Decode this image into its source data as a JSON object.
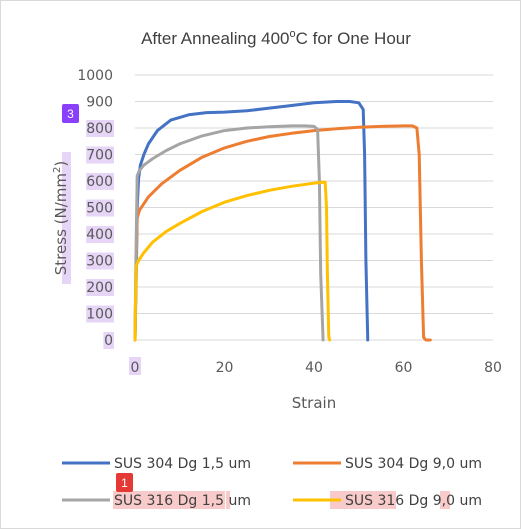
{
  "chart_data": {
    "type": "line",
    "title": "After Annealing 400",
    "title_sup": "o",
    "title_end": "C for One Hour",
    "xlabel": "Strain",
    "ylabel_main": "Stress (N/mm",
    "ylabel_sup": "2",
    "ylabel_end": ")",
    "xlim": [
      0,
      80
    ],
    "ylim": [
      0,
      1000
    ],
    "xticks": [
      "0",
      "20",
      "40",
      "60",
      "80"
    ],
    "yticks": [
      "0",
      "100",
      "200",
      "300",
      "400",
      "500",
      "600",
      "700",
      "800",
      "900",
      "1000"
    ],
    "grid": true,
    "legend_position": "bottom",
    "series": [
      {
        "name": "SUS 304 Dg 1,5 um",
        "color": "#4472c4",
        "x": [
          0,
          0.3,
          0.5,
          0.8,
          1.2,
          2,
          3,
          5,
          8,
          12,
          16,
          20,
          25,
          30,
          35,
          40,
          45,
          48,
          50,
          51,
          51.3,
          51.6,
          52,
          52
        ],
        "y": [
          0,
          250,
          500,
          610,
          660,
          700,
          740,
          790,
          830,
          850,
          858,
          860,
          865,
          875,
          885,
          895,
          900,
          900,
          895,
          870,
          700,
          300,
          10,
          0
        ]
      },
      {
        "name": "SUS 304 Dg 9,0 um",
        "color": "#ed7d31",
        "x": [
          0,
          0.2,
          0.5,
          1,
          3,
          6,
          10,
          15,
          20,
          25,
          30,
          35,
          40,
          45,
          50,
          55,
          60,
          62,
          63,
          63.5,
          64,
          64.5,
          65,
          66
        ],
        "y": [
          0,
          250,
          460,
          490,
          540,
          590,
          640,
          690,
          725,
          750,
          768,
          780,
          790,
          797,
          803,
          806,
          808,
          808,
          800,
          700,
          300,
          10,
          0,
          0
        ]
      },
      {
        "name": "SUS 316 Dg 1,5 um",
        "color": "#a5a5a5",
        "x": [
          0,
          0.2,
          0.5,
          1,
          2,
          4,
          7,
          10,
          15,
          20,
          25,
          30,
          35,
          38,
          40,
          40.8,
          41.2,
          41.5,
          42,
          42
        ],
        "y": [
          0,
          300,
          620,
          640,
          660,
          685,
          715,
          740,
          770,
          790,
          800,
          805,
          808,
          808,
          806,
          795,
          600,
          250,
          10,
          0
        ]
      },
      {
        "name": "SUS 316 Dg 9,0 um",
        "color": "#ffc000",
        "x": [
          0,
          0.1,
          0.3,
          0.8,
          2,
          4,
          7,
          10,
          15,
          20,
          25,
          30,
          35,
          40,
          42,
          42.5,
          42.8,
          43,
          43.3,
          43.5
        ],
        "y": [
          0,
          120,
          280,
          300,
          330,
          370,
          410,
          440,
          485,
          520,
          545,
          565,
          580,
          592,
          595,
          595,
          500,
          250,
          10,
          0
        ]
      }
    ]
  },
  "badges": [
    "3",
    "1"
  ],
  "colors": {
    "grid": "#d9d9d9",
    "badge_purple": "#8a3ffc",
    "badge_red": "#e53935"
  }
}
